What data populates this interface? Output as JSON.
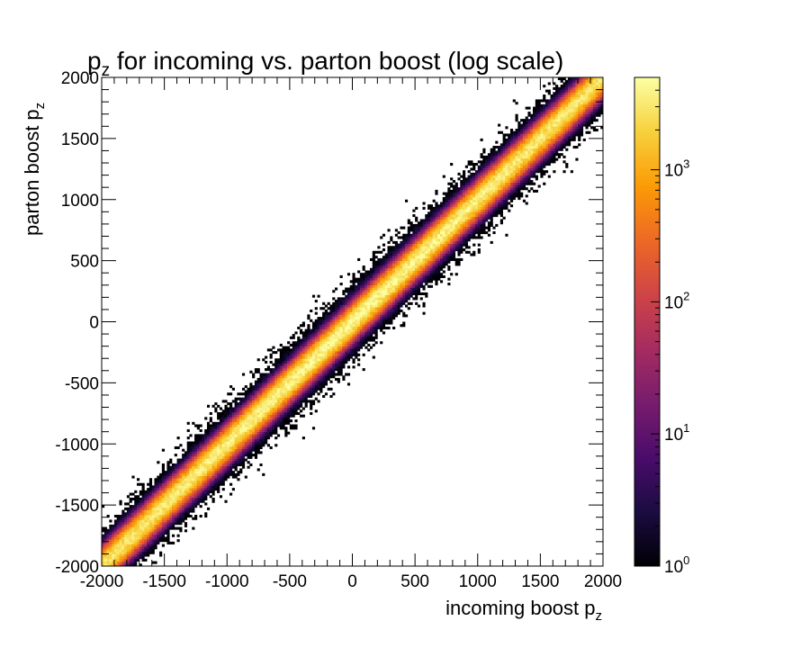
{
  "chart_data": {
    "type": "heatmap",
    "title": {
      "prefix": "p",
      "sub": "z",
      "rest": " for incoming vs. parton boost (log scale)"
    },
    "xlabel": {
      "text": "incoming boost p",
      "sub": "z"
    },
    "ylabel": {
      "text": "parton boost p",
      "sub": "z"
    },
    "xlim": [
      -2000,
      2000
    ],
    "ylim": [
      -2000,
      2000
    ],
    "x_ticks": [
      "-2000",
      "-1500",
      "-1000",
      "-500",
      "0",
      "500",
      "1000",
      "1500",
      "2000"
    ],
    "y_ticks": [
      "-2000",
      "-1500",
      "-1000",
      "-500",
      "0",
      "500",
      "1000",
      "1500",
      "2000"
    ],
    "x_tick_values": [
      -2000,
      -1500,
      -1000,
      -500,
      0,
      500,
      1000,
      1500,
      2000
    ],
    "y_tick_values": [
      -2000,
      -1500,
      -1000,
      -500,
      0,
      500,
      1000,
      1500,
      2000
    ],
    "grid": false,
    "colorbar": {
      "scale": "log",
      "range": [
        1,
        5000
      ],
      "colormap": "inferno",
      "colors": [
        "#000004",
        "#1b0c41",
        "#4a0c6b",
        "#781c6d",
        "#a52c60",
        "#cf4446",
        "#ed6925",
        "#fb9b06",
        "#f7d13d",
        "#fcffa4"
      ],
      "ticks": [
        {
          "value": 1,
          "base": "10",
          "exp": "0"
        },
        {
          "value": 10,
          "base": "10",
          "exp": "1"
        },
        {
          "value": 100,
          "base": "10",
          "exp": "2"
        },
        {
          "value": 1000,
          "base": "10",
          "exp": "3"
        }
      ]
    },
    "distribution": {
      "relation": "y ≈ x",
      "peak_count": 5000,
      "core_width": 40,
      "halo_width": 110
    }
  }
}
